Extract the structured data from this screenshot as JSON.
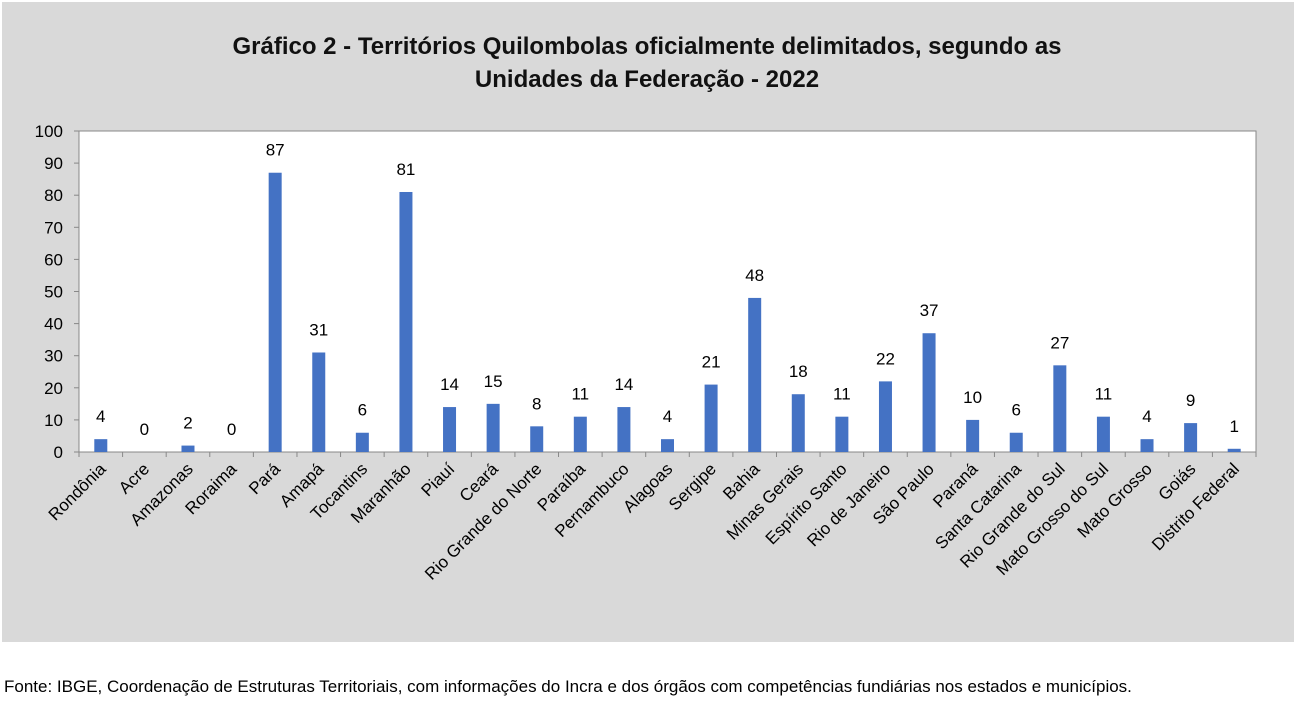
{
  "chart_data": {
    "type": "bar",
    "title_line1": "Gráfico 2 - Territórios Quilombolas oficialmente delimitados, segundo as",
    "title_line2": "Unidades da Federação - 2022",
    "xlabel": "",
    "ylabel": "",
    "ylim": [
      0,
      100
    ],
    "yticks": [
      "0",
      "10",
      "20",
      "30",
      "40",
      "50",
      "60",
      "70",
      "80",
      "90",
      "100"
    ],
    "grid": false,
    "legend": "none",
    "bar_color": "#4472c4",
    "categories": [
      "Rondônia",
      "Acre",
      "Amazonas",
      "Roraima",
      "Pará",
      "Amapá",
      "Tocantins",
      "Maranhão",
      "Piauí",
      "Ceará",
      "Rio Grande do Norte",
      "Paraíba",
      "Pernambuco",
      "Alagoas",
      "Sergipe",
      "Bahia",
      "Minas Gerais",
      "Espírito Santo",
      "Rio de Janeiro",
      "São Paulo",
      "Paraná",
      "Santa Catarina",
      "Rio Grande do Sul",
      "Mato Grosso do Sul",
      "Mato Grosso",
      "Goiás",
      "Distrito Federal"
    ],
    "values": [
      4,
      0,
      2,
      0,
      87,
      31,
      6,
      81,
      14,
      15,
      8,
      11,
      14,
      4,
      21,
      48,
      18,
      11,
      22,
      37,
      10,
      6,
      27,
      11,
      4,
      9,
      1
    ]
  },
  "source": "Fonte: IBGE, Coordenação de Estruturas Territoriais, com informações do Incra e dos órgãos com competências fundiárias nos estados e municípios."
}
